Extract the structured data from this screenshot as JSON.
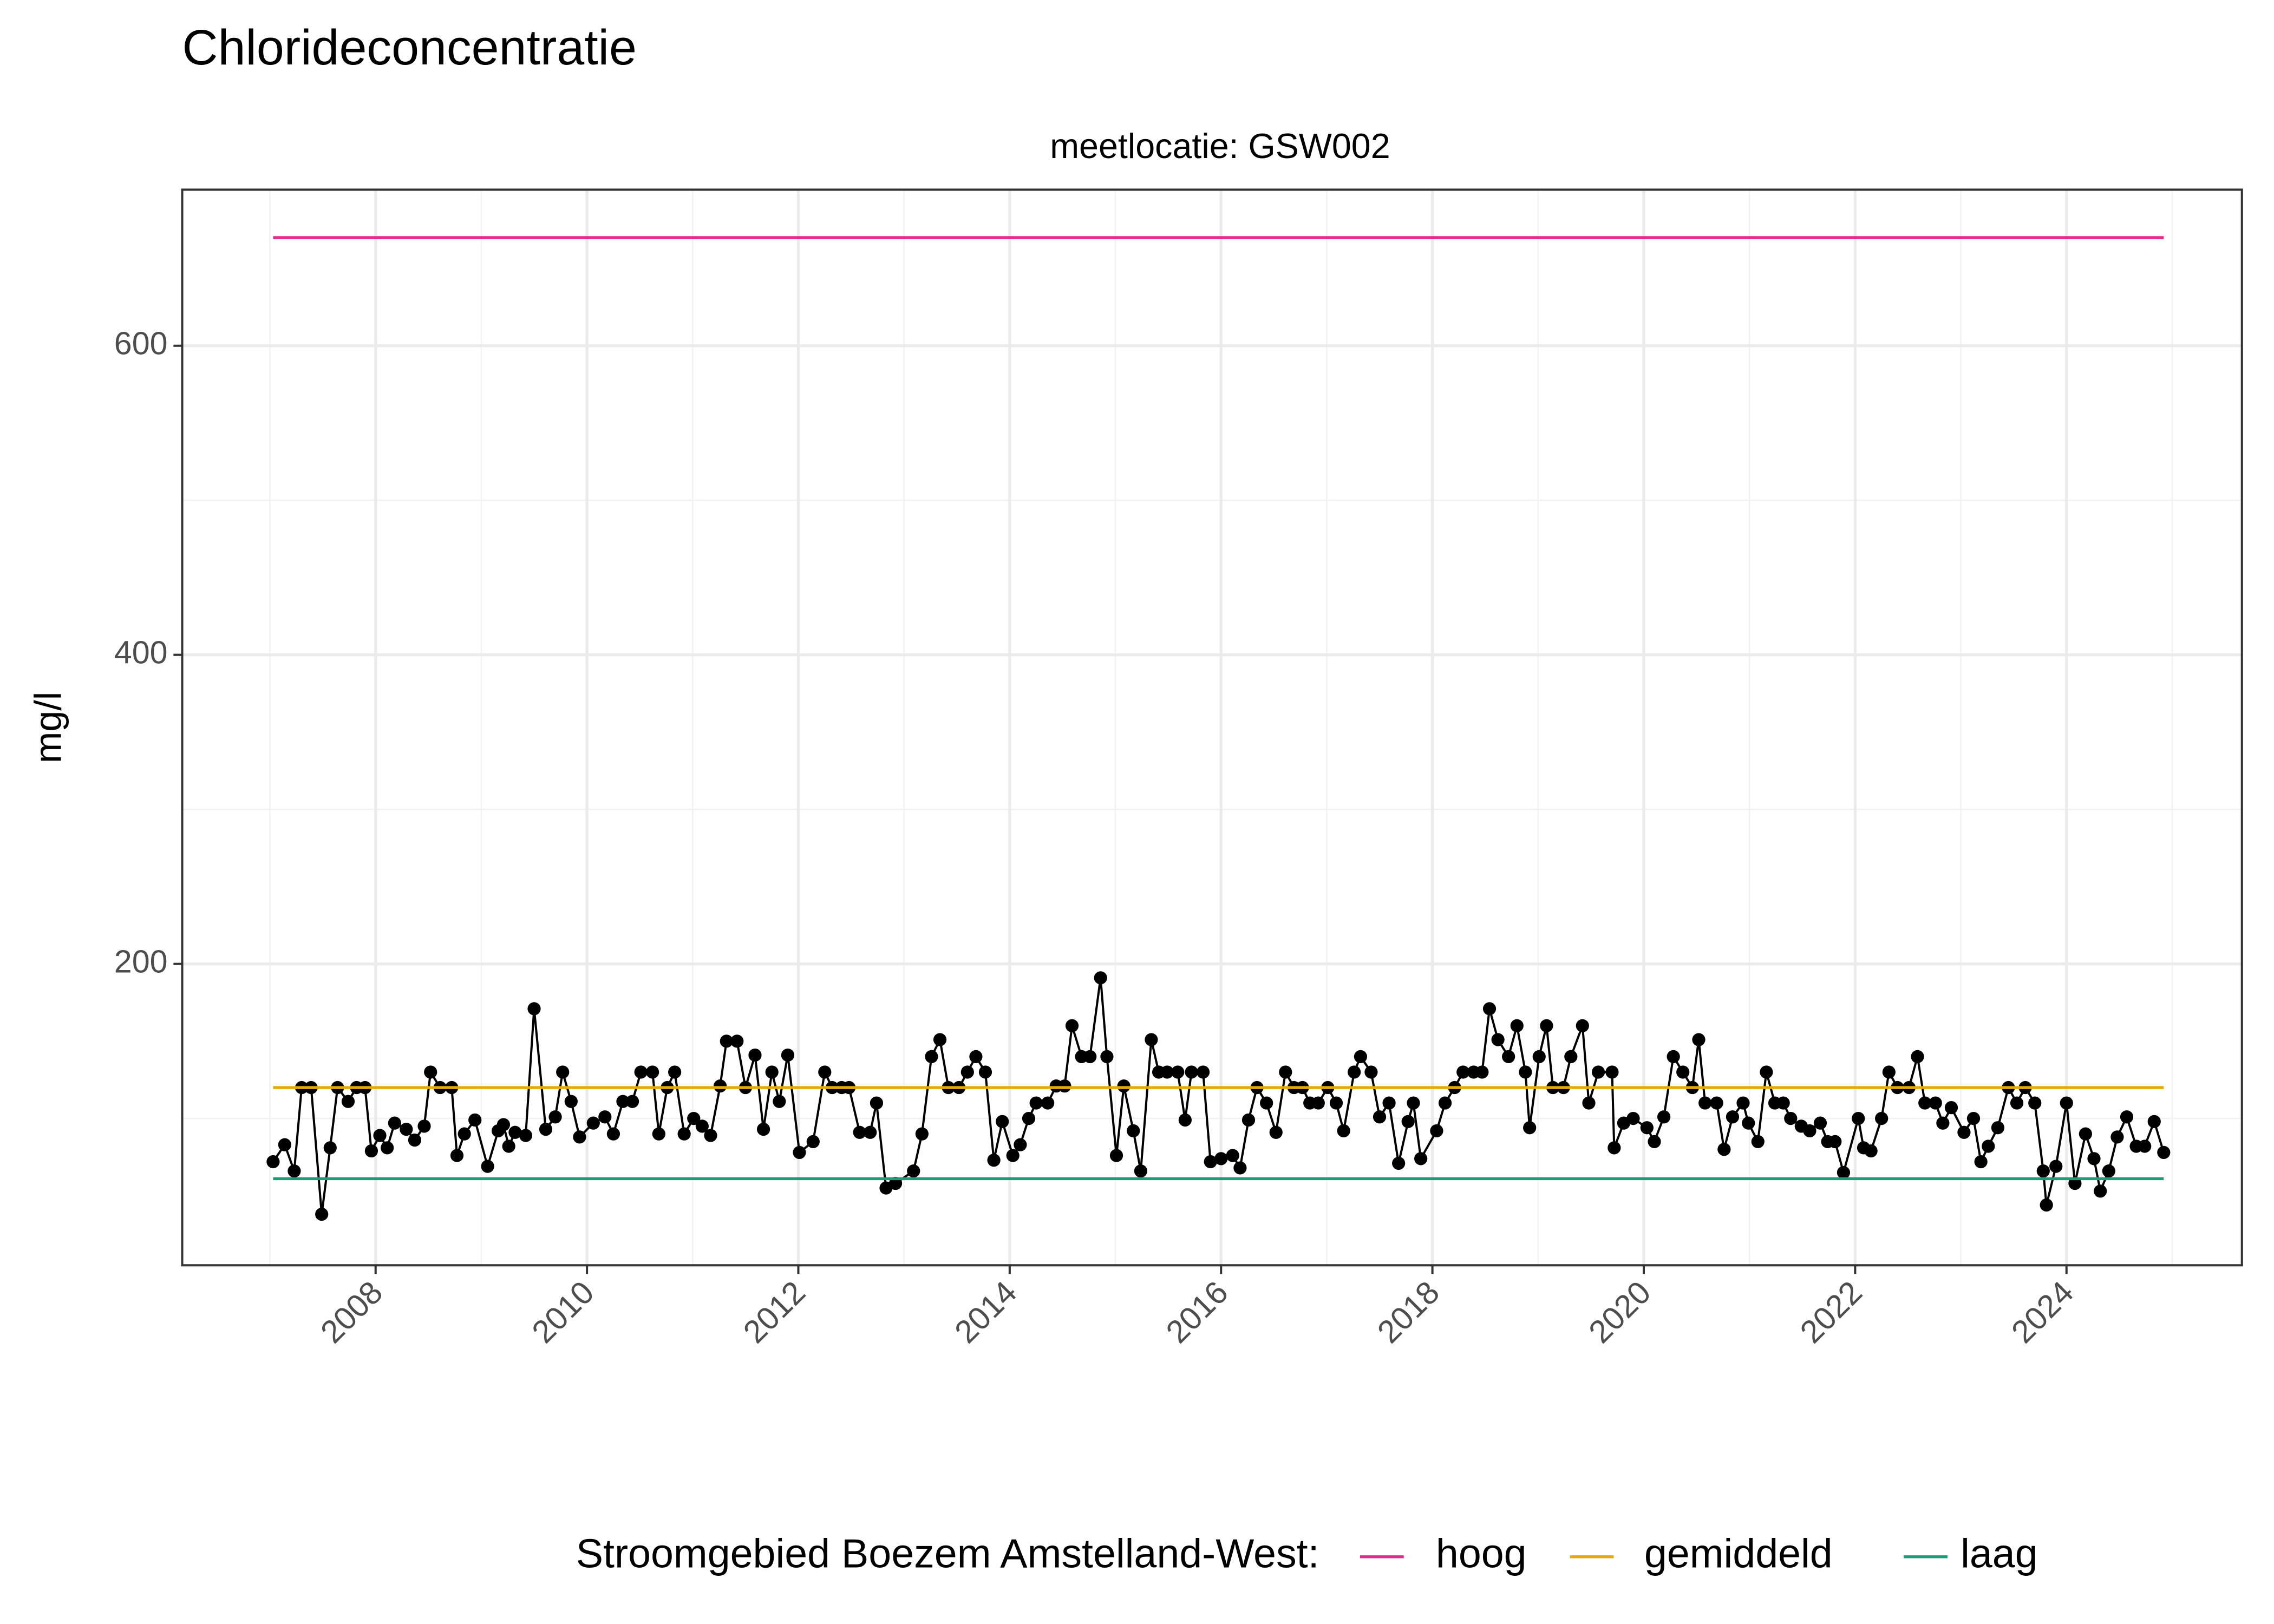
{
  "chart_data": {
    "type": "line",
    "title": "Chlorideconcentratie",
    "subtitle": "meetlocatie: GSW002",
    "y_label": "mg/l",
    "legend_title": "Stroomgebied Boezem Amstelland-West:",
    "xlim": [
      2006.17,
      2025.66
    ],
    "ylim": [
      5,
      701
    ],
    "xticks": [
      2008,
      2010,
      2012,
      2014,
      2016,
      2018,
      2020,
      2022,
      2024
    ],
    "x_minor_ticks": [
      2007,
      2009,
      2011,
      2013,
      2015,
      2017,
      2019,
      2021,
      2023,
      2025
    ],
    "yticks": [
      200,
      400,
      600
    ],
    "y_minor_ticks": [
      100,
      300,
      500
    ],
    "grid": true,
    "legend": "bottom",
    "series": [
      {
        "color": "#000000",
        "markers": true,
        "x": [
          2007.03,
          2007.14,
          2007.23,
          2007.3,
          2007.39,
          2007.49,
          2007.57,
          2007.64,
          2007.74,
          2007.82,
          2007.9,
          2007.96,
          2008.04,
          2008.11,
          2008.18,
          2008.29,
          2008.37,
          2008.46,
          2008.52,
          2008.61,
          2008.72,
          2008.77,
          2008.84,
          2008.94,
          2009.06,
          2009.16,
          2009.21,
          2009.26,
          2009.32,
          2009.42,
          2009.5,
          2009.61,
          2009.7,
          2009.77,
          2009.85,
          2009.93,
          2010.06,
          2010.17,
          2010.25,
          2010.34,
          2010.43,
          2010.51,
          2010.62,
          2010.68,
          2010.76,
          2010.83,
          2010.92,
          2011.01,
          2011.09,
          2011.17,
          2011.26,
          2011.32,
          2011.42,
          2011.5,
          2011.59,
          2011.67,
          2011.75,
          2011.82,
          2011.9,
          2012.01,
          2012.14,
          2012.25,
          2012.32,
          2012.41,
          2012.48,
          2012.58,
          2012.68,
          2012.74,
          2012.83,
          2012.92,
          2013.09,
          2013.17,
          2013.26,
          2013.34,
          2013.42,
          2013.52,
          2013.6,
          2013.68,
          2013.77,
          2013.85,
          2013.93,
          2014.03,
          2014.1,
          2014.18,
          2014.25,
          2014.36,
          2014.44,
          2014.52,
          2014.59,
          2014.68,
          2014.76,
          2014.86,
          2014.92,
          2015.01,
          2015.08,
          2015.17,
          2015.24,
          2015.34,
          2015.41,
          2015.49,
          2015.59,
          2015.66,
          2015.72,
          2015.83,
          2015.9,
          2016.0,
          2016.11,
          2016.18,
          2016.26,
          2016.34,
          2016.43,
          2016.52,
          2016.61,
          2016.69,
          2016.77,
          2016.84,
          2016.92,
          2017.01,
          2017.09,
          2017.16,
          2017.26,
          2017.32,
          2017.42,
          2017.5,
          2017.59,
          2017.68,
          2017.77,
          2017.82,
          2017.89,
          2018.04,
          2018.12,
          2018.21,
          2018.29,
          2018.39,
          2018.47,
          2018.54,
          2018.62,
          2018.72,
          2018.8,
          2018.88,
          2018.92,
          2019.01,
          2019.08,
          2019.14,
          2019.24,
          2019.31,
          2019.42,
          2019.48,
          2019.57,
          2019.7,
          2019.72,
          2019.81,
          2019.9,
          2020.03,
          2020.1,
          2020.19,
          2020.28,
          2020.37,
          2020.46,
          2020.52,
          2020.58,
          2020.69,
          2020.76,
          2020.84,
          2020.94,
          2020.99,
          2021.08,
          2021.16,
          2021.24,
          2021.32,
          2021.39,
          2021.49,
          2021.57,
          2021.67,
          2021.74,
          2021.81,
          2021.89,
          2022.03,
          2022.08,
          2022.15,
          2022.25,
          2022.32,
          2022.4,
          2022.51,
          2022.59,
          2022.66,
          2022.76,
          2022.83,
          2022.91,
          2023.03,
          2023.12,
          2023.19,
          2023.26,
          2023.35,
          2023.45,
          2023.53,
          2023.61,
          2023.7,
          2023.78,
          2023.81,
          2023.9,
          2024.0,
          2024.08,
          2024.18,
          2024.26,
          2024.32,
          2024.4,
          2024.48,
          2024.57,
          2024.66,
          2024.74,
          2024.83,
          2024.92
        ],
        "values": [
          72,
          83,
          66,
          120,
          120,
          38,
          81,
          120,
          111,
          120,
          120,
          79,
          89,
          81,
          97,
          93,
          86,
          95,
          130,
          120,
          120,
          76,
          90,
          99,
          69,
          92,
          96,
          82,
          91,
          89,
          171,
          93,
          101,
          130,
          111,
          88,
          97,
          101,
          90,
          111,
          111,
          130,
          130,
          90,
          120,
          130,
          90,
          100,
          95,
          89,
          121,
          150,
          150,
          120,
          141,
          93,
          130,
          111,
          141,
          78,
          85,
          130,
          120,
          120,
          120,
          91,
          91,
          110,
          55,
          58,
          66,
          90,
          140,
          151,
          120,
          120,
          130,
          140,
          130,
          73,
          98,
          76,
          83,
          100,
          110,
          110,
          121,
          121,
          160,
          140,
          140,
          191,
          140,
          76,
          121,
          92,
          66,
          151,
          130,
          130,
          130,
          99,
          130,
          130,
          72,
          74,
          76,
          68,
          99,
          120,
          110,
          91,
          130,
          120,
          120,
          110,
          110,
          120,
          110,
          92,
          130,
          140,
          130,
          101,
          110,
          71,
          98,
          110,
          74,
          92,
          110,
          120,
          130,
          130,
          130,
          171,
          151,
          140,
          160,
          130,
          94,
          140,
          160,
          120,
          120,
          140,
          160,
          110,
          130,
          130,
          81,
          97,
          100,
          94,
          85,
          101,
          140,
          130,
          120,
          151,
          110,
          110,
          80,
          101,
          110,
          97,
          85,
          130,
          110,
          110,
          100,
          95,
          92,
          97,
          85,
          85,
          65,
          100,
          81,
          79,
          100,
          130,
          120,
          120,
          140,
          110,
          110,
          97,
          107,
          91,
          100,
          72,
          82,
          94,
          120,
          110,
          120,
          110,
          66,
          44,
          69,
          110,
          58,
          90,
          74,
          53,
          66,
          88,
          101,
          82,
          82,
          98,
          78
        ]
      },
      {
        "name": "hoog",
        "color": "#e7298a",
        "x": [
          2007.03,
          2024.92
        ],
        "values": [
          670,
          670
        ]
      },
      {
        "name": "gemiddeld",
        "color": "#e6ab02",
        "x": [
          2007.03,
          2024.92
        ],
        "values": [
          120,
          120
        ]
      },
      {
        "name": "laag",
        "color": "#1b9e77",
        "x": [
          2007.03,
          2024.92
        ],
        "values": [
          61,
          61
        ]
      }
    ]
  }
}
